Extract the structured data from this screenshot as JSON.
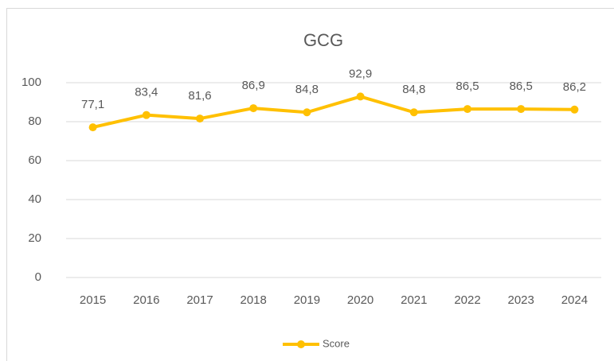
{
  "chart_data": {
    "type": "line",
    "title": "GCG",
    "categories": [
      "2015",
      "2016",
      "2017",
      "2018",
      "2019",
      "2020",
      "2021",
      "2022",
      "2023",
      "2024"
    ],
    "series": [
      {
        "name": "Score",
        "color": "#ffc000",
        "values": [
          77.1,
          83.4,
          81.6,
          86.9,
          84.8,
          92.9,
          84.8,
          86.5,
          86.5,
          86.2
        ],
        "value_labels": [
          "77,1",
          "83,4",
          "81,6",
          "86,9",
          "84,8",
          "92,9",
          "84,8",
          "86,5",
          "86,5",
          "86,2"
        ]
      }
    ],
    "ylim": [
      0,
      100
    ],
    "yticks": [
      0,
      20,
      40,
      60,
      80,
      100
    ],
    "grid": true,
    "legend": "bottom"
  }
}
